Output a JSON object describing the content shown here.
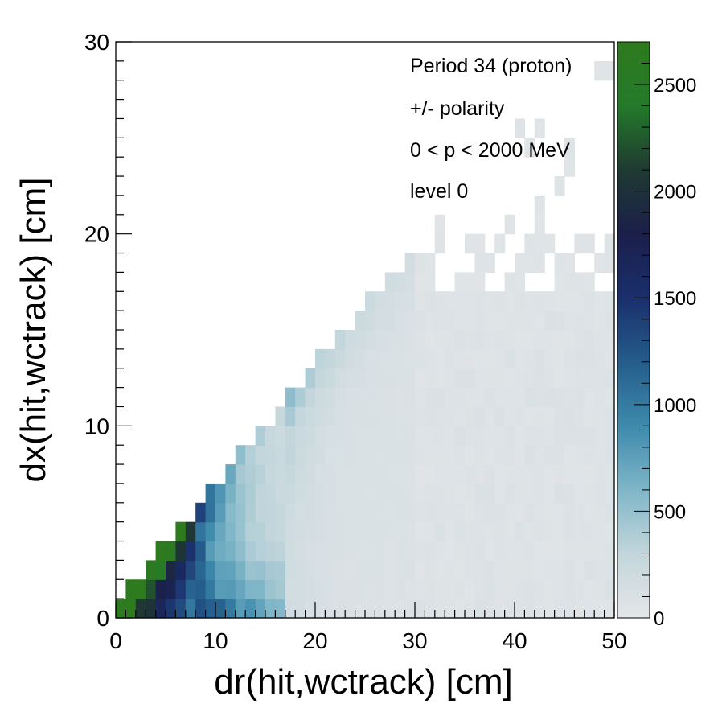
{
  "chart_data": {
    "type": "heatmap",
    "xlabel": "dr(hit,wctrack) [cm]",
    "ylabel": "dx(hit,wctrack) [cm]",
    "xlim": [
      0,
      50
    ],
    "ylim": [
      0,
      30
    ],
    "x_bin_width": 1,
    "y_bin_width": 1,
    "x_ticks": [
      "0",
      "10",
      "20",
      "30",
      "40",
      "50"
    ],
    "y_ticks": [
      "0",
      "10",
      "20",
      "30"
    ],
    "annotations": [
      "Period 34 (proton)",
      "+/- polarity",
      "0 < p < 2000 MeV",
      "level 0"
    ],
    "legend_position": "top-right",
    "colorbar": {
      "min": 0,
      "max": 2700,
      "ticks": [
        "0",
        "500",
        "1000",
        "1500",
        "2000",
        "2500"
      ],
      "colors": [
        "#e4e6e8",
        "#c3d6dc",
        "#7fb6c8",
        "#3d8aac",
        "#255d8c",
        "#1a2f6c",
        "#1b1f4a",
        "#1f3a32",
        "#247a2a",
        "#2e7a1e"
      ]
    },
    "description_rule": "counts(dr,dx) nonzero only for dx <= 0.62*dr + 0.8; peak along the edge dx≈0.6*dr for dr<8 cm, decaying with distance from edge and with dr",
    "grid": false
  }
}
